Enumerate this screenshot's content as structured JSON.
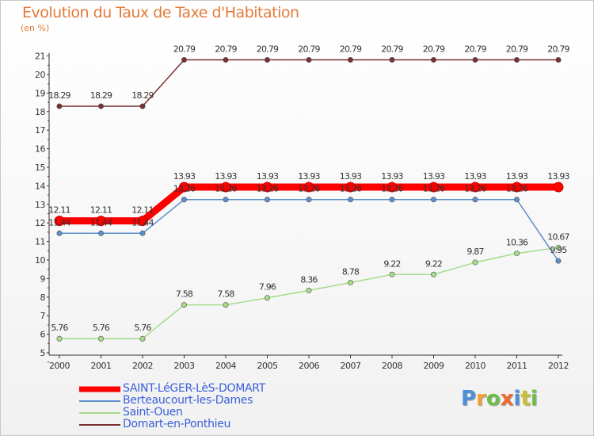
{
  "title": "Evolution du Taux de Taxe d'Habitation",
  "unit_label": "(en %)",
  "logo": {
    "letters": [
      "P",
      "r",
      "o",
      "x",
      "i",
      "t",
      "i"
    ],
    "colors": [
      "#4a8fd8",
      "#f0a030",
      "#6cc04a",
      "#f06a30",
      "#4a8fd8",
      "#c8c030",
      "#6cc04a"
    ]
  },
  "chart_data": {
    "type": "line",
    "x": [
      "2000",
      "2001",
      "2002",
      "2003",
      "2004",
      "2005",
      "2006",
      "2007",
      "2008",
      "2009",
      "2010",
      "2011",
      "2012"
    ],
    "ylim": [
      5,
      21
    ],
    "yticks": [
      5,
      6,
      7,
      8,
      9,
      10,
      11,
      12,
      13,
      14,
      15,
      16,
      17,
      18,
      19,
      20,
      21
    ],
    "grid": false,
    "legend_position": "bottom-left",
    "series": [
      {
        "name": "SAINT-LéGER-LèS-DOMART",
        "color": "#ff0000",
        "values": [
          12.11,
          12.11,
          12.11,
          13.93,
          13.93,
          13.93,
          13.93,
          13.93,
          13.93,
          13.93,
          13.93,
          13.93,
          13.93
        ],
        "labels": [
          "12.11",
          "12.11",
          "12.11",
          "13.93",
          "13.93",
          "13.93",
          "13.93",
          "13.93",
          "13.93",
          "13.93",
          "13.93",
          "13.93",
          "13.93"
        ]
      },
      {
        "name": "Berteaucourt-les-Dames",
        "color": "#5b8fc9",
        "values": [
          11.44,
          11.44,
          11.44,
          13.26,
          13.26,
          13.26,
          13.26,
          13.26,
          13.26,
          13.26,
          13.26,
          13.26,
          9.95
        ],
        "labels": [
          "11.44",
          "11.44",
          "11.44",
          "13.26",
          "13.26",
          "13.26",
          "13.26",
          "13.26",
          "13.26",
          "13.26",
          "13.26",
          "13.26",
          "9.95"
        ]
      },
      {
        "name": "Saint-Ouen",
        "color": "#a6dc8c",
        "values": [
          5.76,
          5.76,
          5.76,
          7.58,
          7.58,
          7.96,
          8.36,
          8.78,
          9.22,
          9.22,
          9.87,
          10.36,
          10.67
        ],
        "labels": [
          "5.76",
          "5.76",
          "5.76",
          "7.58",
          "7.58",
          "7.96",
          "8.36",
          "8.78",
          "9.22",
          "9.22",
          "9.87",
          "10.36",
          "10.67"
        ]
      },
      {
        "name": "Domart-en-Ponthieu",
        "color": "#7a3030",
        "values": [
          18.29,
          18.29,
          18.29,
          20.79,
          20.79,
          20.79,
          20.79,
          20.79,
          20.79,
          20.79,
          20.79,
          20.79,
          20.79
        ],
        "labels": [
          "18.29",
          "18.29",
          "18.29",
          "20.79",
          "20.79",
          "20.79",
          "20.79",
          "20.79",
          "20.79",
          "20.79",
          "20.79",
          "20.79",
          "20.79"
        ]
      }
    ]
  }
}
